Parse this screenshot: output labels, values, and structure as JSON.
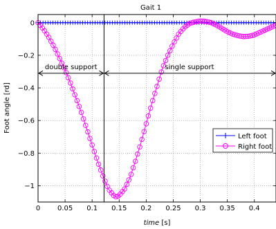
{
  "chart_data": {
    "type": "line",
    "title": "Gait 1",
    "xlabel_italic": "time",
    "xlabel_unit": " [s]",
    "ylabel": "Foot angle [rd]",
    "xlim": [
      0,
      0.44
    ],
    "ylim": [
      -1.1,
      0.05
    ],
    "xticks": [
      0,
      0.05,
      0.1,
      0.15,
      0.2,
      0.25,
      0.3,
      0.35,
      0.4
    ],
    "xtick_labels": [
      "0",
      "0.05",
      "0.1",
      "0.15",
      "0.2",
      "0.25",
      "0.3",
      "0.35",
      "0.4"
    ],
    "yticks": [
      0,
      -0.2,
      -0.4,
      -0.6,
      -0.8,
      -1
    ],
    "ytick_labels": [
      "0",
      "−0.2",
      "−0.4",
      "−0.6",
      "−0.8",
      "−1"
    ],
    "grid": true,
    "legend_position": "right-middle",
    "vertical_line_x": 0.122,
    "phase_arrow_y": -0.31,
    "annotations": [
      {
        "text": "double  support",
        "x": 0.061
      },
      {
        "text": "single support",
        "x": 0.28
      }
    ],
    "series": [
      {
        "name": "Left foot",
        "color": "#0000ff",
        "marker": "plus",
        "x": [
          0,
          0.44
        ],
        "y": [
          0,
          0
        ]
      },
      {
        "name": "Right foot",
        "color": "#ff00ff",
        "marker": "circle",
        "x": [
          0,
          0.01,
          0.02,
          0.03,
          0.04,
          0.05,
          0.06,
          0.07,
          0.08,
          0.09,
          0.1,
          0.11,
          0.12,
          0.13,
          0.14,
          0.145,
          0.15,
          0.16,
          0.17,
          0.18,
          0.19,
          0.2,
          0.21,
          0.22,
          0.23,
          0.24,
          0.25,
          0.26,
          0.27,
          0.28,
          0.29,
          0.3,
          0.31,
          0.32,
          0.33,
          0.34,
          0.35,
          0.36,
          0.37,
          0.38,
          0.39,
          0.4,
          0.41,
          0.42,
          0.43,
          0.44
        ],
        "y": [
          0,
          -0.04,
          -0.09,
          -0.15,
          -0.22,
          -0.29,
          -0.37,
          -0.46,
          -0.55,
          -0.65,
          -0.75,
          -0.85,
          -0.94,
          -1.02,
          -1.06,
          -1.07,
          -1.06,
          -1.02,
          -0.95,
          -0.85,
          -0.74,
          -0.62,
          -0.5,
          -0.39,
          -0.28,
          -0.2,
          -0.13,
          -0.07,
          -0.03,
          -0.005,
          0.005,
          0.01,
          0.008,
          0.0,
          -0.015,
          -0.035,
          -0.055,
          -0.07,
          -0.08,
          -0.085,
          -0.083,
          -0.075,
          -0.06,
          -0.045,
          -0.03,
          -0.015
        ]
      }
    ]
  }
}
